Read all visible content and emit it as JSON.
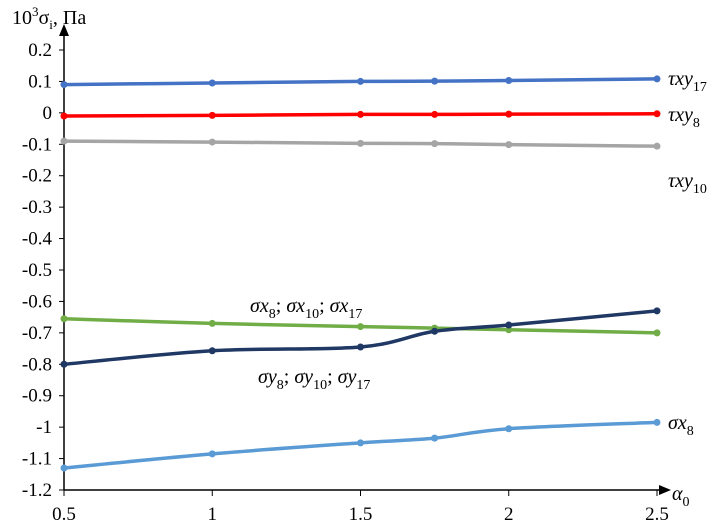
{
  "chart_data": {
    "type": "line",
    "title": "",
    "ylabel": {
      "base": "10",
      "sup": "3",
      "sym": "σ",
      "sub": "i",
      "unit": ", Па"
    },
    "xlabel": {
      "sym": "α",
      "sub": "0"
    },
    "xlim": [
      0.5,
      2.5
    ],
    "ylim": [
      -1.2,
      0.2
    ],
    "x_ticks": [
      "0.5",
      "1",
      "1.5",
      "2",
      "2.5"
    ],
    "y_ticks": [
      "0.2",
      "0.1",
      "0",
      "-0.1",
      "-0.2",
      "-0.3",
      "-0.4",
      "-0.5",
      "-0.6",
      "-0.7",
      "-0.8",
      "-0.9",
      "-1",
      "-1.1",
      "-1.2"
    ],
    "grid": false,
    "x": [
      0.5,
      1,
      1.5,
      1.75,
      2,
      2.5
    ],
    "series": [
      {
        "key": "txy17",
        "color": "#4472C4",
        "values": [
          0.09,
          0.095,
          0.1,
          0.101,
          0.103,
          0.108
        ]
      },
      {
        "key": "txy8",
        "color": "#FF0000",
        "values": [
          -0.01,
          -0.008,
          -0.005,
          -0.005,
          -0.004,
          -0.003
        ]
      },
      {
        "key": "txy10",
        "color": "#A5A5A5",
        "values": [
          -0.09,
          -0.093,
          -0.097,
          -0.098,
          -0.101,
          -0.106
        ]
      },
      {
        "key": "sx_green",
        "color": "#70AD47",
        "values": [
          -0.655,
          -0.67,
          -0.68,
          -0.685,
          -0.69,
          -0.7
        ]
      },
      {
        "key": "sy_dark",
        "color": "#203864",
        "values": [
          -0.8,
          -0.757,
          -0.745,
          -0.695,
          -0.675,
          -0.63
        ]
      },
      {
        "key": "sx8",
        "color": "#5B9BD5",
        "values": [
          -1.13,
          -1.085,
          -1.05,
          -1.035,
          -1.005,
          -0.985
        ]
      }
    ],
    "annotations": [
      {
        "key": "txy17",
        "sym": "τxy",
        "sub": "17"
      },
      {
        "key": "txy8",
        "sym": "τxy",
        "sub": "8"
      },
      {
        "key": "txy10",
        "sym": "τxy",
        "sub": "10"
      },
      {
        "key": "sx_group",
        "parts": [
          [
            "σx",
            "8"
          ],
          [
            "σx",
            "10"
          ],
          [
            "σx",
            "17"
          ]
        ],
        "sep": "; "
      },
      {
        "key": "sy_group",
        "parts": [
          [
            "σy",
            "8"
          ],
          [
            "σy",
            "10"
          ],
          [
            "σy",
            "17"
          ]
        ],
        "sep": "; "
      },
      {
        "key": "sx8",
        "sym": "σx",
        "sub": "8"
      }
    ]
  }
}
